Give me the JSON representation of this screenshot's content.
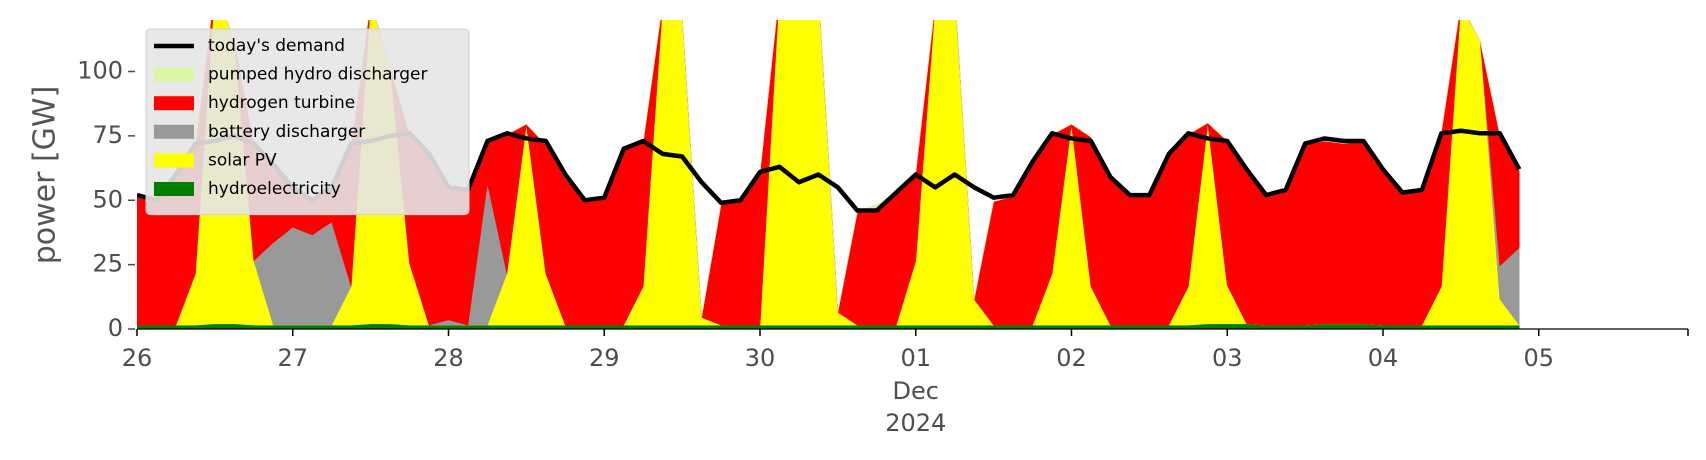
{
  "chart_data": {
    "type": "area",
    "ylabel": "power [GW]",
    "ylim": [
      0,
      120
    ],
    "yticks": [
      0,
      25,
      50,
      75,
      100
    ],
    "x_start": "2024-11-26T00:00",
    "x_end": "2024-12-05T23:00",
    "x_step_hours": 3,
    "xtick_labels": [
      "26",
      "27",
      "28",
      "29",
      "30",
      "01",
      "02",
      "03",
      "04",
      "05"
    ],
    "xaxis_sublabel": [
      "Dec",
      "2024"
    ],
    "grid": false,
    "legend_position": "top-left",
    "colors": {
      "demand": "#000000",
      "pumped_hydro": "#d9f5a6",
      "hydrogen": "#ff0000",
      "battery": "#999999",
      "solar": "#ffff00",
      "hydro": "#008000"
    },
    "legend": [
      {
        "label": "today's demand",
        "kind": "line",
        "color": "#000000"
      },
      {
        "label": "pumped hydro discharger",
        "kind": "patch",
        "color": "#d9f5a6"
      },
      {
        "label": "hydrogen turbine",
        "kind": "patch",
        "color": "#ff0000"
      },
      {
        "label": "battery discharger",
        "kind": "patch",
        "color": "#999999"
      },
      {
        "label": "solar PV",
        "kind": "patch",
        "color": "#ffff00"
      },
      {
        "label": "hydroelectricity",
        "kind": "patch",
        "color": "#008000"
      }
    ],
    "stack_order": [
      "hydroelectricity",
      "solar PV",
      "battery discharger",
      "hydrogen turbine",
      "pumped hydro discharger"
    ],
    "series": [
      {
        "name": "today's demand",
        "values": [
          52,
          50,
          60,
          72,
          73,
          75,
          72,
          64,
          55,
          50,
          55,
          72,
          73,
          75,
          76,
          68,
          55,
          54,
          73,
          76,
          74,
          73,
          60,
          50,
          51,
          70,
          73,
          68,
          67,
          57,
          49,
          50,
          61,
          63,
          57,
          60,
          55,
          46,
          46,
          53,
          60,
          55,
          60,
          55,
          51,
          52,
          65,
          76,
          74,
          73,
          59,
          52,
          52,
          68,
          76,
          74,
          73,
          62,
          52,
          54,
          72,
          74,
          73,
          73,
          62,
          53,
          54,
          76,
          77,
          76,
          76,
          62
        ]
      },
      {
        "name": "hydroelectricity",
        "values": [
          1.5,
          1.5,
          1.5,
          1.5,
          2,
          2,
          1.5,
          1.5,
          1.5,
          1.5,
          1.5,
          1.5,
          2,
          2,
          1.5,
          1.5,
          1.5,
          1.5,
          1.5,
          1.5,
          1.5,
          1.5,
          1.5,
          1.5,
          1.5,
          1.5,
          1.5,
          1.5,
          1.5,
          1.5,
          1.5,
          1.5,
          1.5,
          1.5,
          1.5,
          1.5,
          1.5,
          1.5,
          1.5,
          1.5,
          1.5,
          1.5,
          1.5,
          1.5,
          1.5,
          1.5,
          1.5,
          1.5,
          1.5,
          1.5,
          1.5,
          1.5,
          1.5,
          1.5,
          1.5,
          2,
          2,
          2,
          1.5,
          1.5,
          1.5,
          2,
          2,
          2,
          1.5,
          1.5,
          1.5,
          1.5,
          1.5,
          1.5,
          1.5,
          1.5
        ]
      },
      {
        "name": "solar PV",
        "values": [
          0,
          0,
          0,
          20,
          130,
          110,
          25,
          0,
          0,
          0,
          0,
          15,
          125,
          100,
          24,
          0,
          0,
          0,
          0,
          20,
          78,
          20,
          0,
          0,
          0,
          0,
          15,
          125,
          120,
          3,
          0,
          0,
          0,
          130,
          130,
          130,
          5,
          0,
          0,
          0,
          25,
          125,
          130,
          10,
          0,
          0,
          0,
          20,
          78,
          15,
          0,
          0,
          0,
          0,
          15,
          78,
          15,
          0,
          0,
          0,
          0,
          0,
          0,
          0,
          0,
          0,
          0,
          15,
          125,
          110,
          10,
          0
        ]
      },
      {
        "name": "battery discharger",
        "values": [
          0,
          0,
          0,
          0,
          0,
          0,
          0,
          32,
          38,
          35,
          40,
          0,
          0,
          0,
          0,
          0,
          2,
          0,
          55,
          0,
          0,
          0,
          0,
          0,
          0,
          0,
          0,
          0,
          0,
          0,
          0,
          0,
          0,
          0,
          0,
          0,
          0,
          0,
          0,
          0,
          0,
          0,
          0,
          0,
          0,
          0,
          0,
          0,
          0,
          0,
          0,
          0,
          0,
          0,
          0,
          0,
          0,
          0,
          0,
          0,
          0,
          0,
          0,
          0,
          0,
          0,
          0,
          0,
          0,
          0,
          13,
          30
        ]
      },
      {
        "name": "hydrogen turbine",
        "values": [
          50,
          48,
          58,
          50,
          0,
          0,
          46,
          30,
          15,
          13,
          13,
          55,
          0,
          0,
          50,
          66,
          51,
          52,
          16,
          54,
          0,
          50,
          57,
          48,
          49,
          68,
          56,
          0,
          0,
          0,
          47,
          48,
          59,
          0,
          0,
          0,
          0,
          44,
          44,
          51,
          34,
          0,
          0,
          0,
          48,
          50,
          63,
          54,
          0,
          58,
          57,
          50,
          50,
          66,
          59,
          0,
          56,
          60,
          50,
          52,
          70,
          71,
          70,
          71,
          60,
          51,
          52,
          60,
          0,
          0,
          51,
          30
        ]
      },
      {
        "name": "pumped hydro discharger",
        "values": [
          0,
          0,
          0,
          0,
          0,
          0,
          0,
          0,
          0,
          0,
          0,
          0,
          0,
          0,
          0,
          0,
          0,
          0,
          0,
          0,
          0,
          0,
          0,
          0,
          0,
          0,
          0,
          0,
          0,
          0,
          0,
          0,
          0,
          0,
          0,
          0,
          0,
          0,
          3,
          0,
          0,
          0,
          0,
          0,
          0,
          0,
          0,
          0,
          0,
          0,
          0,
          0,
          0,
          0,
          0,
          0,
          0,
          0,
          0,
          0,
          0,
          0,
          0,
          0,
          0,
          0,
          0,
          0,
          0,
          0,
          0,
          0
        ]
      }
    ]
  }
}
